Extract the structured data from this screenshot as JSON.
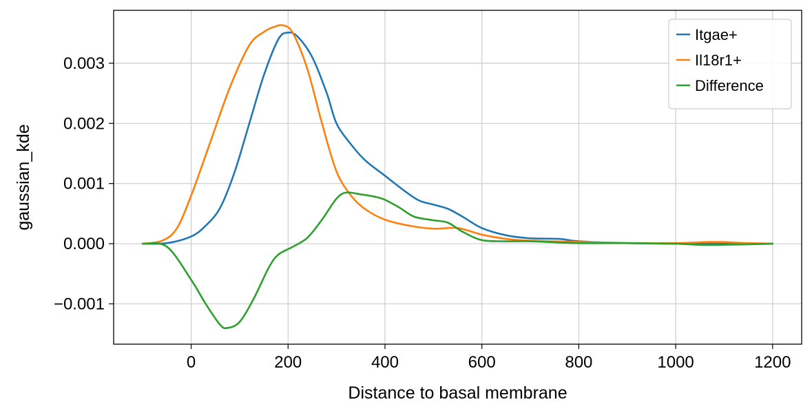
{
  "chart_data": {
    "type": "line",
    "title": "",
    "xlabel": "Distance to basal membrane",
    "ylabel": "gaussian_kde",
    "xlim": [
      -160,
      1260
    ],
    "ylim": [
      -0.00167,
      0.00388
    ],
    "xticks": [
      0,
      200,
      400,
      600,
      800,
      1000,
      1200
    ],
    "xtick_labels": [
      "0",
      "200",
      "400",
      "600",
      "800",
      "1000",
      "1200"
    ],
    "yticks": [
      -0.001,
      0.0,
      0.001,
      0.002,
      0.003
    ],
    "ytick_labels": [
      "−0.001",
      "0.000",
      "0.001",
      "0.002",
      "0.003"
    ],
    "grid": true,
    "legend_position": "top-right",
    "series": [
      {
        "name": "Itgae+",
        "color": "#1f77b4",
        "points": [
          [
            -100,
            0
          ],
          [
            -50,
            1e-05
          ],
          [
            0,
            0.00012
          ],
          [
            30,
            0.0003
          ],
          [
            60,
            0.0006
          ],
          [
            90,
            0.0012
          ],
          [
            120,
            0.002
          ],
          [
            150,
            0.0028
          ],
          [
            180,
            0.0034
          ],
          [
            200,
            0.00351
          ],
          [
            220,
            0.00344
          ],
          [
            250,
            0.0031
          ],
          [
            280,
            0.0025
          ],
          [
            300,
            0.002
          ],
          [
            330,
            0.00165
          ],
          [
            360,
            0.00138
          ],
          [
            400,
            0.00113
          ],
          [
            440,
            0.00088
          ],
          [
            470,
            0.00072
          ],
          [
            500,
            0.00065
          ],
          [
            530,
            0.00058
          ],
          [
            560,
            0.00045
          ],
          [
            600,
            0.00026
          ],
          [
            650,
            0.00014
          ],
          [
            700,
            9e-05
          ],
          [
            760,
            8e-05
          ],
          [
            800,
            4e-05
          ],
          [
            900,
            1e-05
          ],
          [
            1000,
            0
          ],
          [
            1100,
            0
          ],
          [
            1200,
            0
          ]
        ]
      },
      {
        "name": "Il18r1+",
        "color": "#ff7f0e",
        "points": [
          [
            -100,
            0
          ],
          [
            -60,
            5e-05
          ],
          [
            -30,
            0.00025
          ],
          [
            0,
            0.0008
          ],
          [
            40,
            0.0017
          ],
          [
            80,
            0.0026
          ],
          [
            120,
            0.0033
          ],
          [
            150,
            0.00352
          ],
          [
            170,
            0.0036
          ],
          [
            190,
            0.00363
          ],
          [
            210,
            0.0035
          ],
          [
            240,
            0.0029
          ],
          [
            270,
            0.002
          ],
          [
            300,
            0.0012
          ],
          [
            330,
            0.0008
          ],
          [
            360,
            0.00057
          ],
          [
            400,
            0.0004
          ],
          [
            450,
            0.0003
          ],
          [
            500,
            0.00025
          ],
          [
            550,
            0.00026
          ],
          [
            600,
            0.00015
          ],
          [
            650,
            8e-05
          ],
          [
            700,
            5e-05
          ],
          [
            800,
            3e-05
          ],
          [
            900,
            1e-05
          ],
          [
            1000,
            1e-05
          ],
          [
            1080,
            3e-05
          ],
          [
            1150,
            1e-05
          ],
          [
            1200,
            0
          ]
        ]
      },
      {
        "name": "Difference",
        "color": "#2ca02c",
        "points": [
          [
            -100,
            0
          ],
          [
            -50,
            -5e-05
          ],
          [
            0,
            -0.0006
          ],
          [
            30,
            -0.001
          ],
          [
            60,
            -0.00135
          ],
          [
            75,
            -0.0014
          ],
          [
            100,
            -0.0013
          ],
          [
            130,
            -0.0009
          ],
          [
            160,
            -0.0004
          ],
          [
            180,
            -0.00018
          ],
          [
            210,
            -5e-05
          ],
          [
            240,
            0.0001
          ],
          [
            270,
            0.0004
          ],
          [
            300,
            0.00075
          ],
          [
            320,
            0.00085
          ],
          [
            350,
            0.00082
          ],
          [
            380,
            0.00078
          ],
          [
            400,
            0.00073
          ],
          [
            430,
            0.0006
          ],
          [
            460,
            0.00045
          ],
          [
            500,
            0.00039
          ],
          [
            530,
            0.00035
          ],
          [
            560,
            0.0002
          ],
          [
            600,
            6e-05
          ],
          [
            650,
            4e-05
          ],
          [
            700,
            4e-05
          ],
          [
            800,
            1e-05
          ],
          [
            900,
            1e-05
          ],
          [
            1000,
            0
          ],
          [
            1060,
            -2e-05
          ],
          [
            1150,
            -1e-05
          ],
          [
            1200,
            0
          ]
        ]
      }
    ]
  }
}
